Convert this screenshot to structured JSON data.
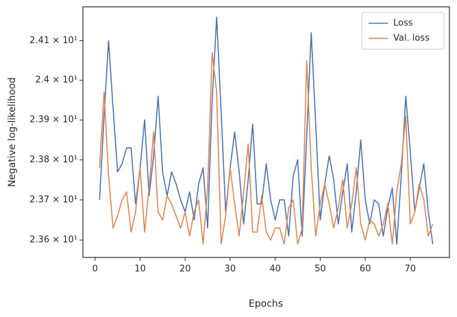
{
  "chart_data": {
    "type": "line",
    "xlabel": "Epochs",
    "ylabel": "Negative log-likelihood",
    "x": [
      1,
      2,
      3,
      4,
      5,
      6,
      7,
      8,
      9,
      10,
      11,
      12,
      13,
      14,
      15,
      16,
      17,
      18,
      19,
      20,
      21,
      22,
      23,
      24,
      25,
      26,
      27,
      28,
      29,
      30,
      31,
      32,
      33,
      34,
      35,
      36,
      37,
      38,
      39,
      40,
      41,
      42,
      43,
      44,
      45,
      46,
      47,
      48,
      49,
      50,
      51,
      52,
      53,
      54,
      55,
      56,
      57,
      58,
      59,
      60,
      61,
      62,
      63,
      64,
      65,
      66,
      67,
      68,
      69,
      70,
      71,
      72,
      73,
      74,
      75
    ],
    "series": [
      {
        "name": "Loss",
        "color": "#4c72b0",
        "values": [
          23.7,
          23.91,
          24.1,
          23.93,
          23.77,
          23.79,
          23.83,
          23.83,
          23.69,
          23.78,
          23.9,
          23.71,
          23.81,
          23.96,
          23.77,
          23.71,
          23.77,
          23.74,
          23.7,
          23.67,
          23.72,
          23.65,
          23.74,
          23.78,
          23.63,
          23.95,
          24.16,
          23.92,
          23.67,
          23.78,
          23.87,
          23.77,
          23.64,
          23.75,
          23.89,
          23.69,
          23.69,
          23.79,
          23.7,
          23.65,
          23.7,
          23.7,
          23.61,
          23.76,
          23.8,
          23.61,
          23.86,
          24.12,
          23.89,
          23.65,
          23.74,
          23.81,
          23.75,
          23.64,
          23.72,
          23.79,
          23.62,
          23.72,
          23.85,
          23.7,
          23.64,
          23.7,
          23.69,
          23.61,
          23.68,
          23.73,
          23.59,
          23.76,
          23.96,
          23.82,
          23.67,
          23.73,
          23.79,
          23.67,
          23.59
        ]
      },
      {
        "name": "Val. loss",
        "color": "#dd8452",
        "values": [
          23.78,
          23.97,
          23.76,
          23.63,
          23.66,
          23.7,
          23.72,
          23.62,
          23.67,
          23.78,
          23.62,
          23.73,
          23.87,
          23.67,
          23.65,
          23.71,
          23.69,
          23.66,
          23.63,
          23.67,
          23.61,
          23.67,
          23.7,
          23.59,
          23.73,
          24.07,
          23.97,
          23.59,
          23.66,
          23.78,
          23.69,
          23.61,
          23.72,
          23.84,
          23.62,
          23.62,
          23.71,
          23.62,
          23.6,
          23.63,
          23.63,
          23.59,
          23.68,
          23.7,
          23.59,
          23.63,
          24.05,
          23.78,
          23.61,
          23.69,
          23.74,
          23.69,
          23.63,
          23.68,
          23.75,
          23.63,
          23.69,
          23.78,
          23.64,
          23.6,
          23.65,
          23.64,
          23.61,
          23.64,
          23.69,
          23.59,
          23.72,
          23.79,
          23.91,
          23.64,
          23.67,
          23.74,
          23.7,
          23.61,
          23.64
        ]
      }
    ],
    "xlim": [
      -2.7,
      78.7
    ],
    "xticks": [
      0,
      10,
      20,
      30,
      40,
      50,
      60,
      70
    ],
    "ylim": [
      23.557,
      24.186
    ],
    "log_y": true,
    "yticks": [
      {
        "value": 23.6,
        "label": "2.36 × 10¹"
      },
      {
        "value": 23.7,
        "label": "2.37 × 10¹"
      },
      {
        "value": 23.8,
        "label": "2.38 × 10¹"
      },
      {
        "value": 23.9,
        "label": "2.39 × 10¹"
      },
      {
        "value": 24.0,
        "label": "2.4 × 10¹"
      },
      {
        "value": 24.1,
        "label": "2.41 × 10¹"
      }
    ],
    "grid": false,
    "legend": "upper right"
  }
}
